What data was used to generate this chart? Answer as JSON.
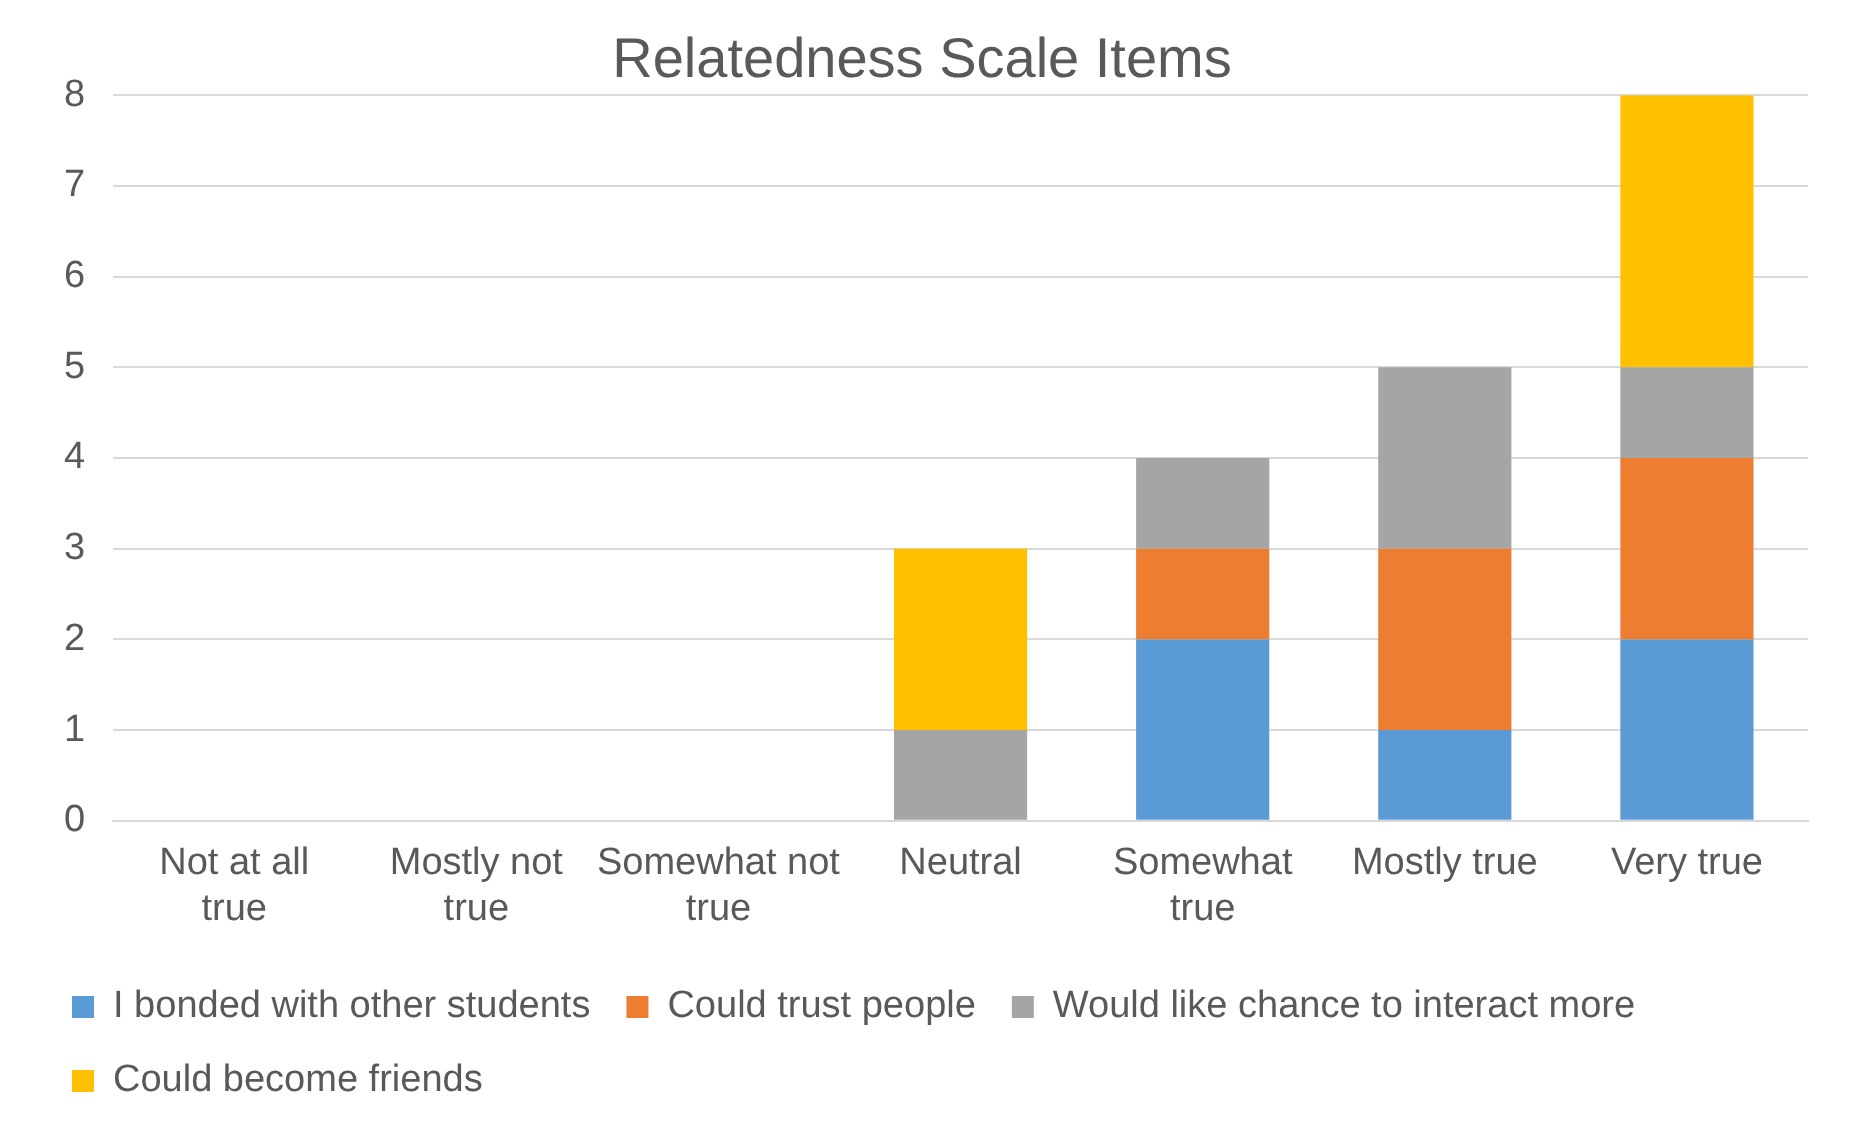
{
  "chart_data": {
    "type": "bar",
    "title": "Relatedness Scale Items",
    "stacked": true,
    "categories": [
      "Not at all true",
      "Mostly not true",
      "Somewhat not true",
      "Neutral",
      "Somewhat true",
      "Mostly true",
      "Very true"
    ],
    "series": [
      {
        "name": "I bonded with other students",
        "color": "#5b9bd5",
        "values": [
          0,
          0,
          0,
          0,
          2,
          1,
          2
        ]
      },
      {
        "name": "Could trust people",
        "color": "#ed7d31",
        "values": [
          0,
          0,
          0,
          0,
          1,
          2,
          2
        ]
      },
      {
        "name": "Would like chance to interact more",
        "color": "#a5a5a5",
        "values": [
          0,
          0,
          0,
          1,
          1,
          2,
          1
        ]
      },
      {
        "name": "Could become friends",
        "color": "#ffc000",
        "values": [
          0,
          0,
          0,
          2,
          0,
          0,
          3
        ]
      }
    ],
    "ylim": [
      0,
      8
    ],
    "yticks": [
      0,
      1,
      2,
      3,
      4,
      5,
      6,
      7,
      8
    ],
    "grid": "y",
    "legend": "bottom"
  }
}
